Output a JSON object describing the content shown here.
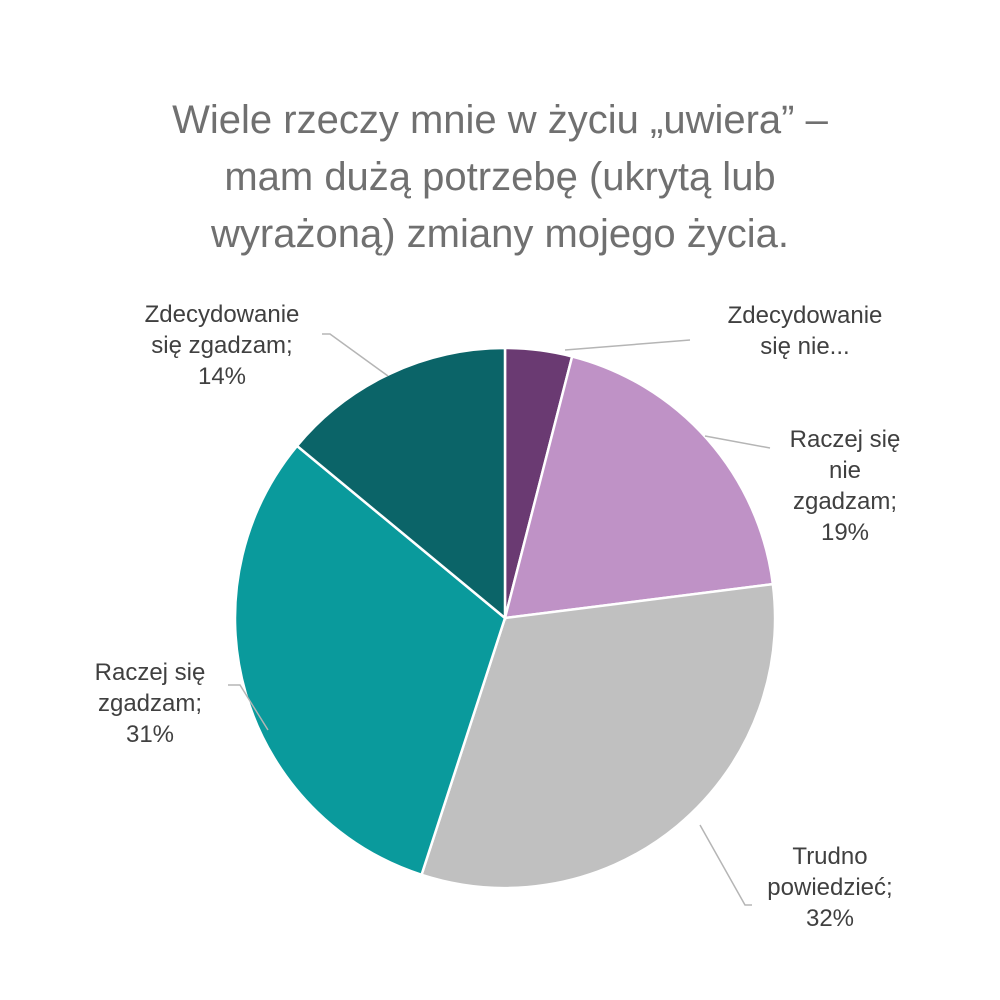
{
  "chart_data": {
    "type": "pie",
    "title_lines": [
      "Wiele rzeczy mnie w życiu „uwiera” –",
      "mam dużą potrzebę (ukrytą lub",
      "wyrażoną) zmiany mojego życia."
    ],
    "slices": [
      {
        "name": "Zdecydowanie się nie zgadzam",
        "value": 4,
        "color": "#6a3a72",
        "label_lines": [
          "Zdecydowanie",
          "się nie..."
        ]
      },
      {
        "name": "Raczej się nie zgadzam",
        "value": 19,
        "color": "#bf92c6",
        "label_lines": [
          "Raczej się",
          "nie",
          "zgadzam;",
          "19%"
        ]
      },
      {
        "name": "Trudno powiedzieć",
        "value": 32,
        "color": "#c0c0c0",
        "label_lines": [
          "Trudno",
          "powiedzieć;",
          "32%"
        ]
      },
      {
        "name": "Raczej się zgadzam",
        "value": 31,
        "color": "#0a9a9c",
        "label_lines": [
          "Raczej się",
          "zgadzam;",
          "31%"
        ]
      },
      {
        "name": "Zdecydowanie się zgadzam",
        "value": 14,
        "color": "#0b6468",
        "label_lines": [
          "Zdecydowanie",
          "się zgadzam;",
          "14%"
        ]
      }
    ],
    "start_angle_deg": 0,
    "direction": "clockwise",
    "legend": "none"
  }
}
